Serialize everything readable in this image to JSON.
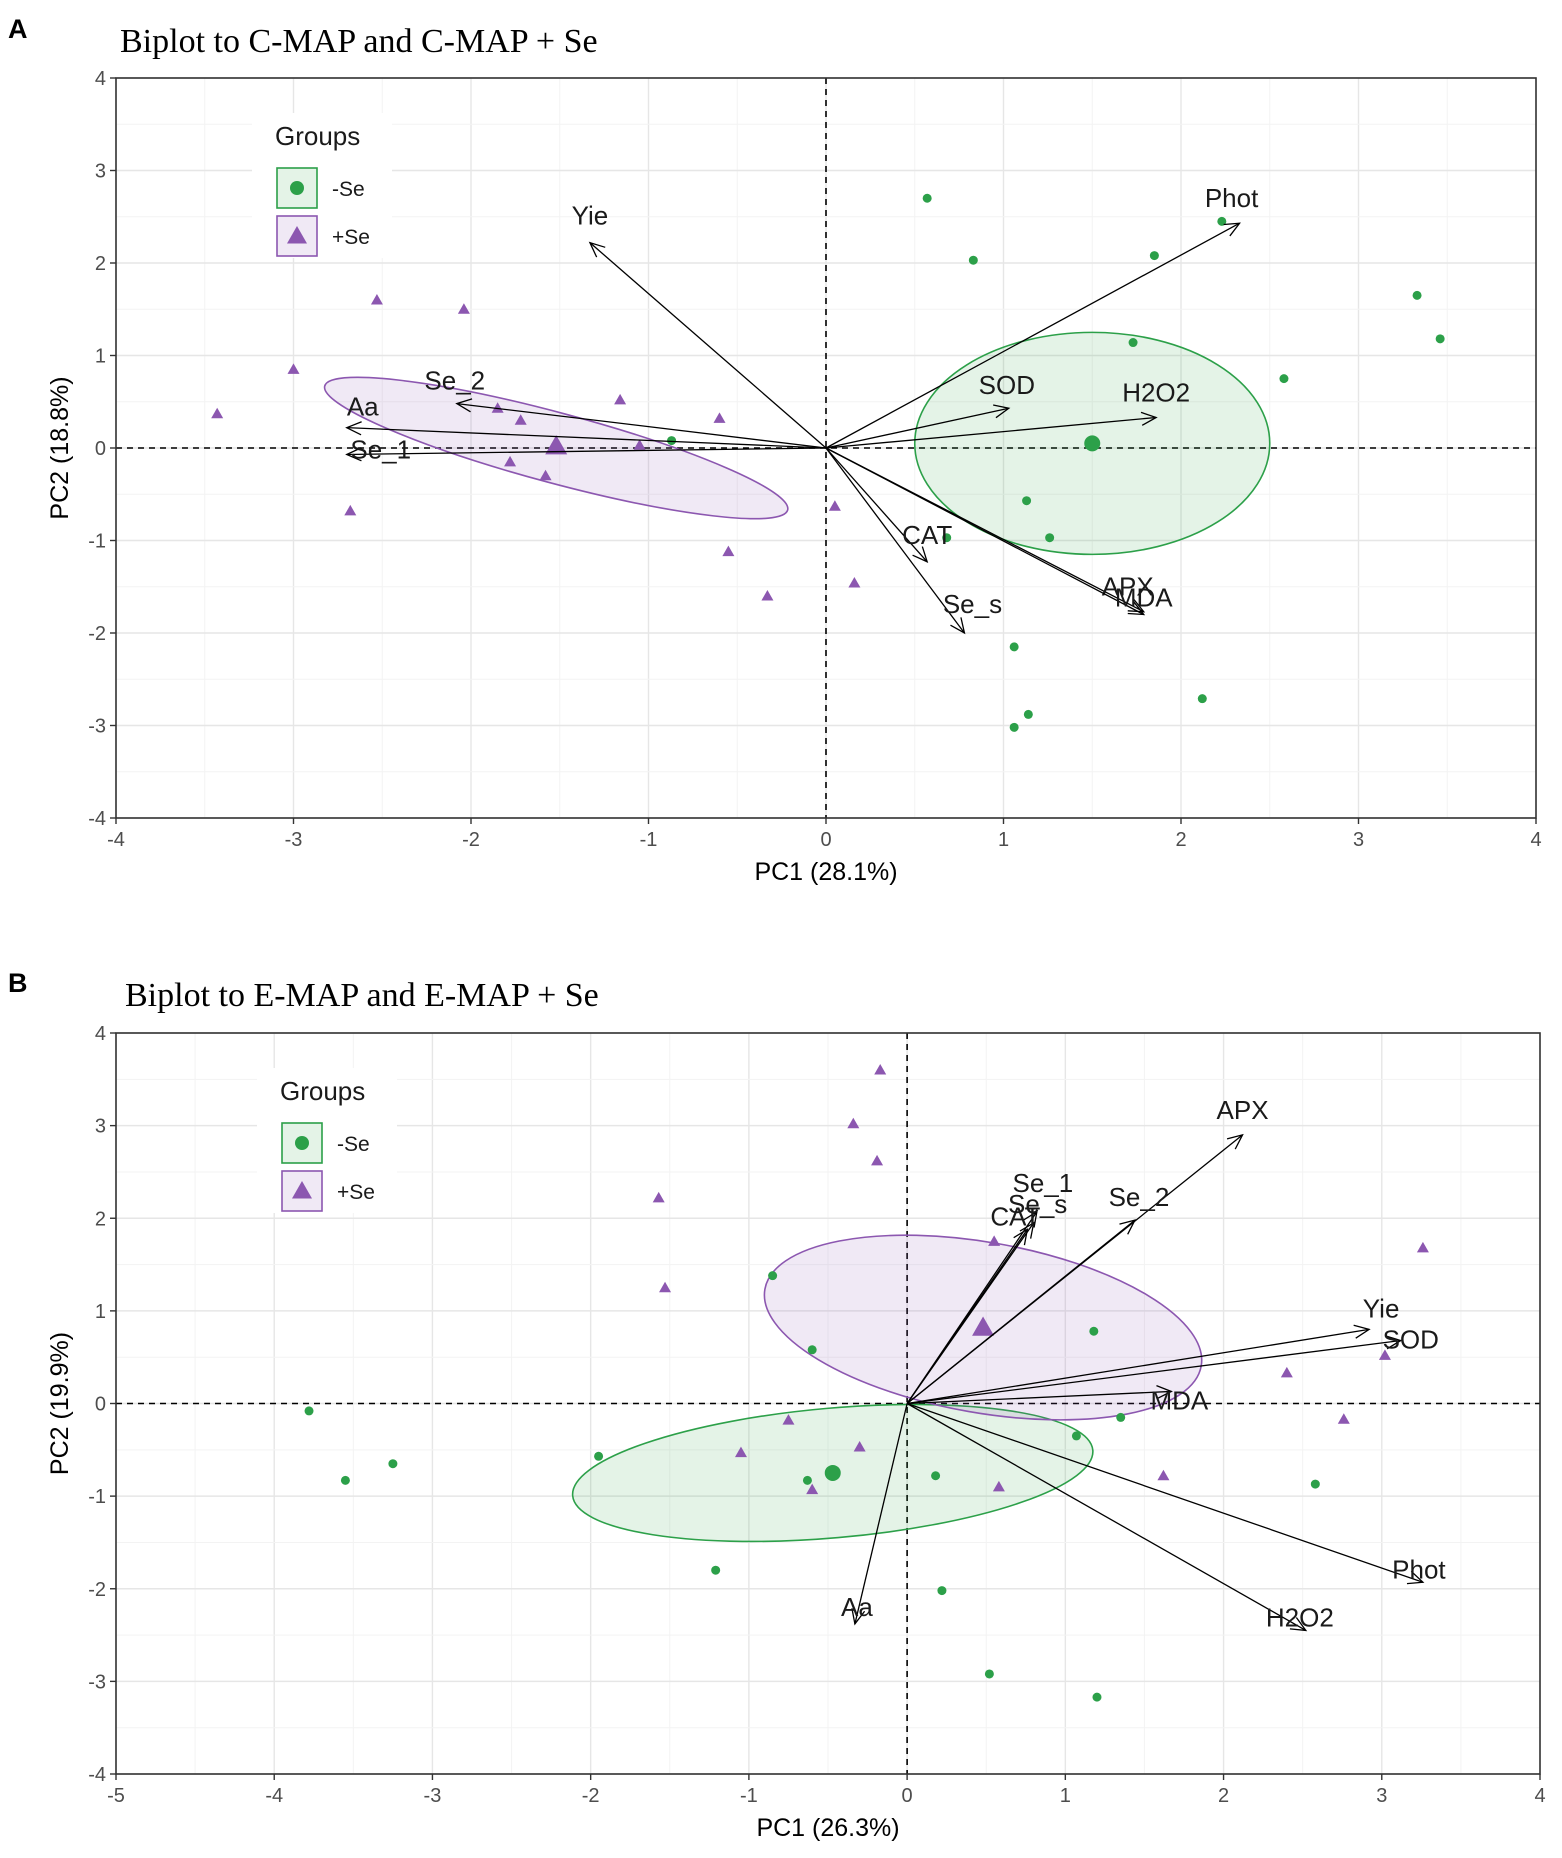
{
  "colors": {
    "minus_se": "#2ca049",
    "plus_se": "#8c57b0",
    "grid": "#ebebeb",
    "panel_border": "#333333"
  },
  "chart_data": [
    {
      "panel": "A",
      "type": "scatter",
      "title": "Biplot to C-MAP and C-MAP + Se",
      "xlabel": "PC1 (28.1%)",
      "ylabel": "PC2 (18.8%)",
      "xlim": [
        -4,
        4
      ],
      "ylim": [
        -4,
        4
      ],
      "xticks": [
        -4,
        -3,
        -2,
        -1,
        0,
        1,
        2,
        3,
        4
      ],
      "yticks": [
        -4,
        -3,
        -2,
        -1,
        0,
        1,
        2,
        3,
        4
      ],
      "legend": {
        "title": "Groups",
        "position": "top-left",
        "entries": [
          "-Se",
          "+Se"
        ]
      },
      "series": [
        {
          "name": "-Se",
          "marker": "circle",
          "points": [
            [
              0.57,
              2.7
            ],
            [
              0.83,
              2.03
            ],
            [
              1.85,
              2.08
            ],
            [
              2.23,
              2.45
            ],
            [
              3.33,
              1.65
            ],
            [
              3.46,
              1.18
            ],
            [
              1.73,
              1.14
            ],
            [
              2.58,
              0.75
            ],
            [
              -0.87,
              0.08
            ],
            [
              1.13,
              -0.57
            ],
            [
              1.26,
              -0.97
            ],
            [
              0.68,
              -0.97
            ],
            [
              1.06,
              -2.15
            ],
            [
              1.14,
              -2.88
            ],
            [
              1.06,
              -3.02
            ],
            [
              2.12,
              -2.71
            ]
          ],
          "centroid": [
            1.5,
            0.05
          ],
          "ellipse": {
            "cx": 1.5,
            "cy": 0.05,
            "rx": 1.0,
            "ry": 1.2,
            "angle": 0
          }
        },
        {
          "name": "+Se",
          "marker": "triangle",
          "points": [
            [
              -3.43,
              0.37
            ],
            [
              -3.0,
              0.85
            ],
            [
              -2.53,
              1.6
            ],
            [
              -2.04,
              1.5
            ],
            [
              -2.68,
              -0.68
            ],
            [
              -1.85,
              0.43
            ],
            [
              -1.72,
              0.3
            ],
            [
              -1.78,
              -0.15
            ],
            [
              -1.58,
              -0.3
            ],
            [
              -1.16,
              0.52
            ],
            [
              -1.05,
              0.03
            ],
            [
              -0.6,
              0.32
            ],
            [
              0.05,
              -0.63
            ],
            [
              -0.55,
              -1.12
            ],
            [
              -0.33,
              -1.6
            ],
            [
              0.16,
              -1.46
            ]
          ],
          "centroid": [
            -1.52,
            0.02
          ],
          "ellipse": {
            "cx": -1.52,
            "cy": 0.0,
            "rx": 1.35,
            "ry": 0.38,
            "angle": -15
          }
        }
      ],
      "loadings": [
        {
          "name": "Yie",
          "x": -1.33,
          "y": 2.22
        },
        {
          "name": "Phot",
          "x": 2.33,
          "y": 2.43
        },
        {
          "name": "SOD",
          "x": 1.03,
          "y": 0.43
        },
        {
          "name": "H2O2",
          "x": 1.86,
          "y": 0.33
        },
        {
          "name": "Se_2",
          "x": -2.08,
          "y": 0.48
        },
        {
          "name": "Aa",
          "x": -2.7,
          "y": 0.22
        },
        {
          "name": "Se_1",
          "x": -2.7,
          "y": -0.07
        },
        {
          "name": "CAT",
          "x": 0.57,
          "y": -1.23
        },
        {
          "name": "Se_s",
          "x": 0.78,
          "y": -2.0
        },
        {
          "name": "APX",
          "x": 1.79,
          "y": -1.77
        },
        {
          "name": "MDA",
          "x": 1.79,
          "y": -1.8
        }
      ]
    },
    {
      "panel": "B",
      "type": "scatter",
      "title": "Biplot to E-MAP and E-MAP + Se",
      "xlabel": "PC1 (26.3%)",
      "ylabel": "PC2 (19.9%)",
      "xlim": [
        -5,
        4
      ],
      "ylim": [
        -4,
        4
      ],
      "xticks": [
        -5,
        -4,
        -3,
        -2,
        -1,
        0,
        1,
        2,
        3,
        4
      ],
      "yticks": [
        -4,
        -3,
        -2,
        -1,
        0,
        1,
        2,
        3,
        4
      ],
      "legend": {
        "title": "Groups",
        "position": "top-left",
        "entries": [
          "-Se",
          "+Se"
        ]
      },
      "series": [
        {
          "name": "-Se",
          "marker": "circle",
          "points": [
            [
              -3.78,
              -0.08
            ],
            [
              -3.55,
              -0.83
            ],
            [
              -3.25,
              -0.65
            ],
            [
              -1.95,
              -0.57
            ],
            [
              -0.85,
              1.38
            ],
            [
              -0.6,
              0.58
            ],
            [
              -1.21,
              -1.8
            ],
            [
              -0.63,
              -0.83
            ],
            [
              0.18,
              -0.78
            ],
            [
              0.22,
              -2.02
            ],
            [
              0.52,
              -2.92
            ],
            [
              1.07,
              -0.35
            ],
            [
              1.35,
              -0.15
            ],
            [
              1.18,
              0.78
            ],
            [
              2.58,
              -0.87
            ],
            [
              1.2,
              -3.17
            ]
          ],
          "centroid": [
            -0.47,
            -0.75
          ],
          "ellipse": {
            "cx": -0.47,
            "cy": -0.75,
            "rx": 1.65,
            "ry": 0.7,
            "angle": 5
          }
        },
        {
          "name": "+Se",
          "marker": "triangle",
          "points": [
            [
              -0.17,
              3.6
            ],
            [
              -0.34,
              3.02
            ],
            [
              -0.19,
              2.62
            ],
            [
              -1.57,
              2.22
            ],
            [
              -1.53,
              1.25
            ],
            [
              -0.75,
              -0.18
            ],
            [
              -1.05,
              -0.53
            ],
            [
              -0.3,
              -0.47
            ],
            [
              -0.6,
              -0.93
            ],
            [
              0.55,
              1.75
            ],
            [
              0.58,
              -0.9
            ],
            [
              1.62,
              -0.78
            ],
            [
              2.4,
              0.33
            ],
            [
              2.76,
              -0.17
            ],
            [
              3.02,
              0.52
            ],
            [
              3.26,
              1.68
            ]
          ],
          "centroid": [
            0.48,
            0.82
          ],
          "ellipse": {
            "cx": 0.48,
            "cy": 0.82,
            "rx": 1.4,
            "ry": 0.92,
            "angle": -10
          }
        }
      ],
      "loadings": [
        {
          "name": "APX",
          "x": 2.12,
          "y": 2.9
        },
        {
          "name": "Se_1",
          "x": 0.82,
          "y": 2.07
        },
        {
          "name": "Se_s",
          "x": 0.8,
          "y": 1.95
        },
        {
          "name": "CAT",
          "x": 0.76,
          "y": 1.88
        },
        {
          "name": "Se_2",
          "x": 1.44,
          "y": 1.98
        },
        {
          "name": "Yie",
          "x": 2.92,
          "y": 0.8
        },
        {
          "name": "SOD",
          "x": 3.12,
          "y": 0.68
        },
        {
          "name": "MDA",
          "x": 1.67,
          "y": 0.13
        },
        {
          "name": "Phot",
          "x": 3.26,
          "y": -1.93
        },
        {
          "name": "H2O2",
          "x": 2.52,
          "y": -2.45
        },
        {
          "name": "Aa",
          "x": -0.33,
          "y": -2.38
        }
      ]
    }
  ]
}
